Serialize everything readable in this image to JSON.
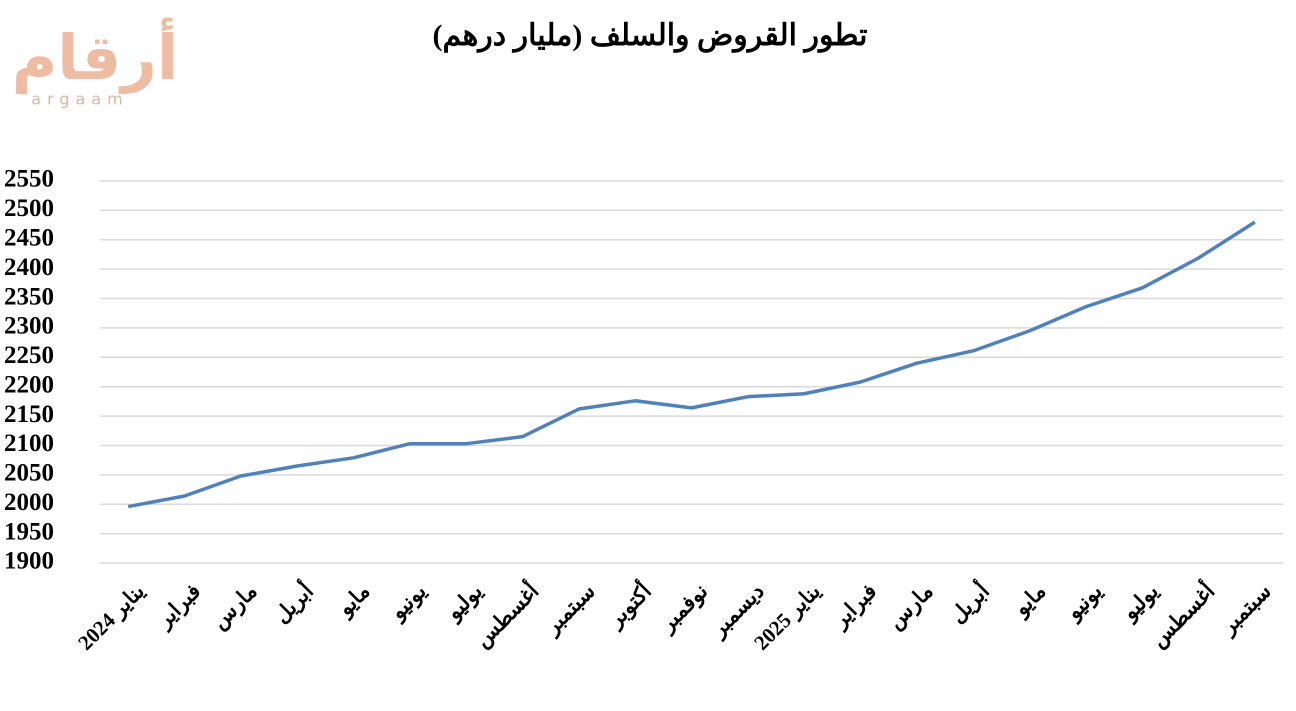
{
  "logo": {
    "text": "أرقام",
    "subtext": "argaam"
  },
  "chart_data": {
    "type": "line",
    "title": "تطور القروض والسلف (مليار درهم)",
    "categories": [
      "يناير 2024",
      "فبراير",
      "مارس",
      "أبريل",
      "مايو",
      "يونيو",
      "يوليو",
      "أغسطس",
      "سبتمبر",
      "أكتوبر",
      "نوفمبر",
      "ديسمبر",
      "يناير 2025",
      "فبراير",
      "مارس",
      "أبريل",
      "مايو",
      "يونيو",
      "يوليو",
      "أغسطس",
      "سبتمبر"
    ],
    "series": [
      {
        "name": "القروض والسلف",
        "color": "#4f81bd",
        "values": [
          1996,
          2014,
          2048,
          2065,
          2079,
          2103,
          2103,
          2115,
          2162,
          2176,
          2164,
          2183,
          2188,
          2208,
          2240,
          2261,
          2295,
          2336,
          2368,
          2419,
          2480
        ]
      }
    ],
    "ylim": [
      1900,
      2550
    ],
    "yticks": [
      1900,
      1950,
      2000,
      2050,
      2100,
      2150,
      2200,
      2250,
      2300,
      2350,
      2400,
      2450,
      2500,
      2550
    ],
    "grid": true
  }
}
